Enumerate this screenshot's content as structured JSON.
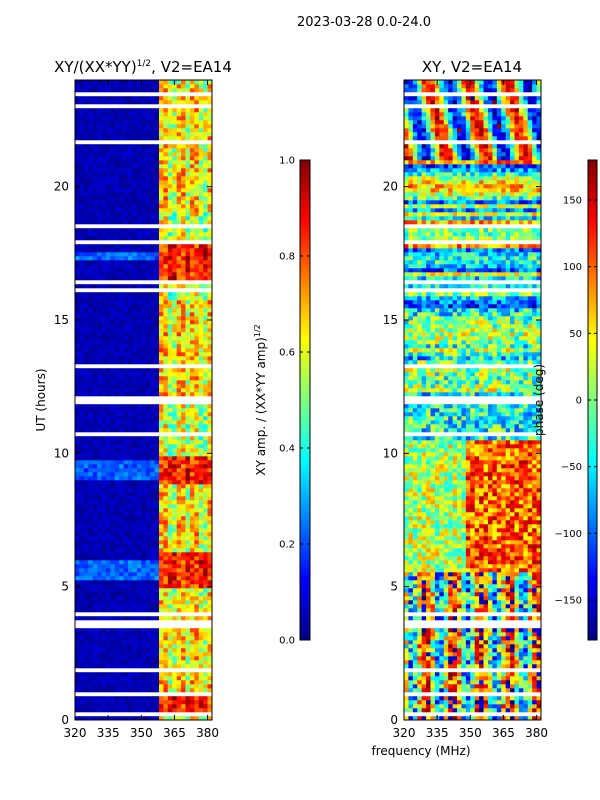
{
  "suptitle": "2023-03-28 0.0-24.0",
  "colors": {
    "masked": "#ffffff",
    "axis": "#000000",
    "colormap": [
      "#00007f",
      "#0000ff",
      "#007fff",
      "#00ffff",
      "#7fff7f",
      "#ffff00",
      "#ff7f00",
      "#ff0000",
      "#7f0000"
    ]
  },
  "chart_data": [
    {
      "type": "heatmap",
      "title": "XY/(XX*YY)^{1/2}, V2=EA14",
      "title_main": "XY/(XX*YY)",
      "title_sup": "1/2",
      "title_tail": ", V2=EA14",
      "xlabel": "",
      "ylabel": "UT (hours)",
      "xlim": [
        320,
        382
      ],
      "ylim": [
        0,
        24
      ],
      "xticks": [
        "320",
        "335",
        "350",
        "365",
        "380"
      ],
      "xtick_values": [
        320,
        335,
        350,
        365,
        380
      ],
      "yticks": [
        "0",
        "5",
        "10",
        "15",
        "20"
      ],
      "ytick_values": [
        0,
        5,
        10,
        15,
        20
      ],
      "colorbar": {
        "label": "XY amp. / (XX*YY amp)",
        "label_sup": "1/2",
        "range": [
          0.0,
          1.0
        ],
        "ticks": [
          "0.0",
          "0.2",
          "0.4",
          "0.6",
          "0.8",
          "1.0"
        ],
        "tick_values": [
          0.0,
          0.2,
          0.4,
          0.6,
          0.8,
          1.0
        ]
      },
      "bright_band_mhz": [
        359,
        381
      ],
      "strong_hours": [
        [
          5.0,
          6.3
        ],
        [
          8.8,
          9.9
        ],
        [
          16.3,
          18.0
        ],
        [
          0.3,
          0.9
        ]
      ],
      "moderate_hours": [
        [
          12.0,
          15.8
        ],
        [
          19.0,
          23.8
        ],
        [
          1.0,
          4.8
        ],
        [
          6.3,
          8.8
        ]
      ],
      "masked_hours": [
        0.28,
        0.95,
        1.9,
        3.55,
        3.72,
        3.95,
        4.35,
        10.7,
        11.85,
        11.95,
        12.05,
        13.3,
        16.1,
        16.45,
        17.9,
        18.5,
        20.4,
        21.7,
        22.8,
        23.05,
        23.4,
        23.5
      ]
    },
    {
      "type": "heatmap",
      "title": "XY, V2=EA14",
      "xlabel": "frequency (MHz)",
      "ylabel": "",
      "xlim": [
        320,
        382
      ],
      "ylim": [
        0,
        24
      ],
      "xticks": [
        "320",
        "335",
        "350",
        "365",
        "380"
      ],
      "xtick_values": [
        320,
        335,
        350,
        365,
        380
      ],
      "yticks": [
        "0",
        "5",
        "10",
        "15",
        "20"
      ],
      "ytick_values": [
        0,
        5,
        10,
        15,
        20
      ],
      "colorbar": {
        "label": "phase (deg)",
        "range": [
          -180,
          180
        ],
        "ticks": [
          "−150",
          "−100",
          "−50",
          "0",
          "50",
          "100",
          "150"
        ],
        "tick_values": [
          -150,
          -100,
          -50,
          0,
          50,
          100,
          150
        ]
      },
      "masked_hours": [
        0.28,
        0.95,
        1.9,
        3.55,
        3.72,
        3.95,
        4.35,
        10.7,
        11.85,
        11.95,
        12.05,
        13.3,
        16.1,
        16.45,
        17.9,
        18.5,
        20.4,
        21.7,
        22.8,
        23.05,
        23.4,
        23.5
      ]
    }
  ]
}
